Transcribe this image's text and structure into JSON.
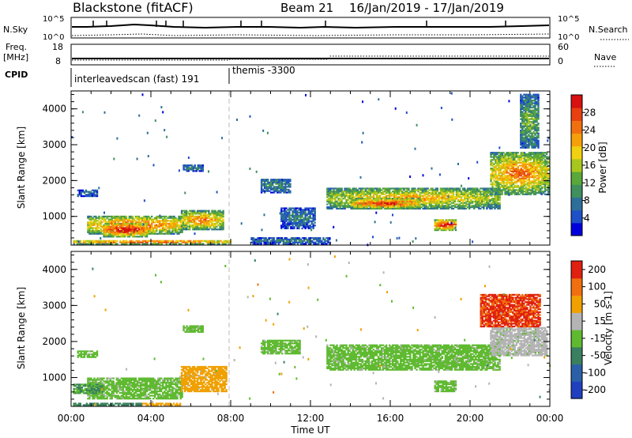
{
  "header": {
    "title": "Blackstone (fitACF)",
    "beam": "Beam 21",
    "date_range": "16/Jan/2019 - 17/Jan/2019"
  },
  "top_panels": {
    "nsky_label": "N.Sky",
    "nsky_ticks": [
      "10^5",
      "10^0"
    ],
    "nsearch_label": "N.Search",
    "nsearch_ticks": [
      "10^5",
      "10^0"
    ],
    "freq_label_1": "Freq.",
    "freq_label_2": "[MHz]",
    "freq_ticks": [
      "18",
      "8"
    ],
    "nave_label": "Nave",
    "nave_ticks": [
      "60",
      "0"
    ],
    "cpid_label": "CPID",
    "cpid_segments": [
      {
        "label": "interleavedscan (fast) 191",
        "start_hour": 0
      },
      {
        "label": "themis -3300",
        "start_hour": 8
      }
    ]
  },
  "chart_data": [
    {
      "type": "heatmap",
      "name": "power",
      "ylabel": "Slant Range [km]",
      "ylim": [
        200,
        4500
      ],
      "yticks": [
        1000,
        2000,
        3000,
        4000
      ],
      "colorbar_label": "Power [dB]",
      "colorbar_ticks": [
        4,
        8,
        12,
        16,
        20,
        24,
        28
      ],
      "colorscale": [
        "#0000dd",
        "#1e50c8",
        "#2e6e9a",
        "#3f8f5f",
        "#5aa83a",
        "#a8c71e",
        "#f0d010",
        "#f5a00a",
        "#f07010",
        "#e84010",
        "#d81010"
      ],
      "features": [
        {
          "t0": 0.1,
          "t1": 8.0,
          "r0": 220,
          "r1": 330,
          "level": 0.75
        },
        {
          "t0": 0.8,
          "t1": 5.6,
          "r0": 500,
          "r1": 1000,
          "level": 0.7
        },
        {
          "t0": 1.6,
          "t1": 3.8,
          "r0": 420,
          "r1": 820,
          "level": 0.85
        },
        {
          "t0": 0.3,
          "t1": 1.3,
          "r0": 1550,
          "r1": 1750,
          "level": 0.15
        },
        {
          "t0": 5.5,
          "t1": 7.6,
          "r0": 620,
          "r1": 1150,
          "level": 0.65
        },
        {
          "t0": 5.6,
          "t1": 6.6,
          "r0": 2250,
          "r1": 2450,
          "level": 0.2
        },
        {
          "t0": 9.5,
          "t1": 11.0,
          "r0": 1650,
          "r1": 2050,
          "level": 0.25
        },
        {
          "t0": 10.5,
          "t1": 12.2,
          "r0": 650,
          "r1": 1250,
          "level": 0.2
        },
        {
          "t0": 12.8,
          "t1": 21.5,
          "r0": 1200,
          "r1": 1800,
          "level": 0.55
        },
        {
          "t0": 14.0,
          "t1": 17.5,
          "r0": 1200,
          "r1": 1500,
          "level": 0.75
        },
        {
          "t0": 18.2,
          "t1": 19.3,
          "r0": 600,
          "r1": 900,
          "level": 0.85
        },
        {
          "t0": 21.0,
          "t1": 23.9,
          "r0": 1600,
          "r1": 2800,
          "level": 0.65
        },
        {
          "t0": 22.5,
          "t1": 23.4,
          "r0": 2900,
          "r1": 4400,
          "level": 0.35
        },
        {
          "t0": 9.0,
          "t1": 13.0,
          "r0": 220,
          "r1": 400,
          "level": 0.2
        }
      ]
    },
    {
      "type": "heatmap",
      "name": "velocity",
      "ylabel": "Slant Range [km]",
      "xlabel": "Time UT",
      "x_ticks": [
        "00:00",
        "04:00",
        "08:00",
        "12:00",
        "16:00",
        "20:00",
        "00:00"
      ],
      "xlim_hours": [
        0,
        24
      ],
      "ylim": [
        200,
        4500
      ],
      "yticks": [
        1000,
        2000,
        3000,
        4000
      ],
      "colorbar_label": "Velocity [m s-1]",
      "colorbar_ticks": [
        "200",
        "100",
        "50",
        "15",
        "-15",
        "-50",
        "-100",
        "-200"
      ],
      "colorscale": [
        "#2040c0",
        "#2a60a8",
        "#3a8060",
        "#5fba30",
        "#b4b4b4",
        "#f0a000",
        "#f07010",
        "#e02010"
      ],
      "features": [
        {
          "t0": 0.8,
          "t1": 5.6,
          "r0": 400,
          "r1": 1000,
          "level": 0.45
        },
        {
          "t0": 0.1,
          "t1": 1.6,
          "r0": 550,
          "r1": 800,
          "level": 0.35
        },
        {
          "t0": 0.3,
          "t1": 1.3,
          "r0": 1550,
          "r1": 1750,
          "level": 0.45
        },
        {
          "t0": 5.5,
          "t1": 7.8,
          "r0": 600,
          "r1": 1300,
          "level": 0.7
        },
        {
          "t0": 5.6,
          "t1": 6.6,
          "r0": 2250,
          "r1": 2450,
          "level": 0.45
        },
        {
          "t0": 9.5,
          "t1": 11.5,
          "r0": 1650,
          "r1": 2050,
          "level": 0.45
        },
        {
          "t0": 12.8,
          "t1": 21.5,
          "r0": 1200,
          "r1": 1900,
          "level": 0.45
        },
        {
          "t0": 18.2,
          "t1": 19.3,
          "r0": 600,
          "r1": 900,
          "level": 0.45
        },
        {
          "t0": 21.0,
          "t1": 23.8,
          "r0": 1600,
          "r1": 2400,
          "level": 0.55
        },
        {
          "t0": 20.5,
          "t1": 23.5,
          "r0": 2400,
          "r1": 3300,
          "level": 0.95
        },
        {
          "t0": 3.5,
          "t1": 5.5,
          "r0": 220,
          "r1": 300,
          "level": 0.7
        },
        {
          "t0": 0.1,
          "t1": 3.5,
          "r0": 220,
          "r1": 300,
          "level": 0.3
        }
      ]
    }
  ]
}
